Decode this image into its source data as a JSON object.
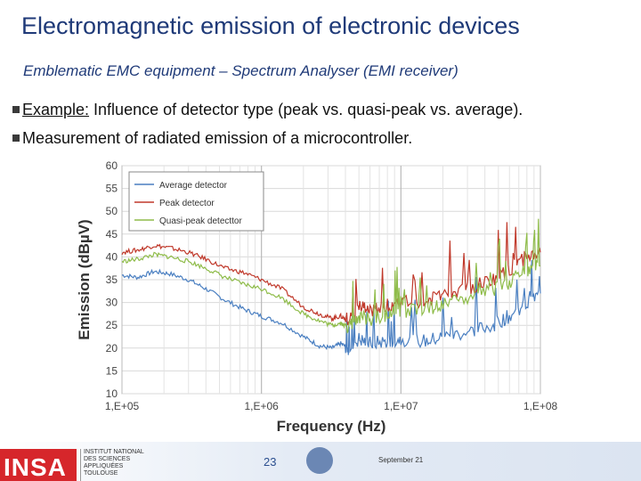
{
  "slide": {
    "title": "Electromagnetic emission of electronic devices",
    "subtitle": "Emblematic EMC equipment – Spectrum Analyser (EMI receiver)",
    "bullets": [
      {
        "prefix": "Example:",
        "text": " Influence of detector type (peak vs. quasi-peak vs. average)."
      },
      {
        "prefix": "",
        "text": "Measurement of radiated emission of a microcontroller."
      }
    ]
  },
  "footer": {
    "logo_text": "INSA",
    "institution_lines": [
      "INSTITUT NATIONAL",
      "DES SCIENCES",
      "APPLIQUÉES",
      "TOULOUSE"
    ],
    "page_number": "23",
    "date": "September 21"
  },
  "chart_data": {
    "type": "line",
    "xlabel": "Frequency (Hz)",
    "ylabel": "Emission (dBµV)",
    "xscale": "log",
    "xlim": [
      100000,
      100000000
    ],
    "ylim": [
      10,
      60
    ],
    "yticks": [
      10,
      15,
      20,
      25,
      30,
      35,
      40,
      45,
      50,
      55,
      60
    ],
    "yticklabels": [
      "10",
      "15",
      "20",
      "25",
      "30",
      "35",
      "40",
      "45",
      "50",
      "55",
      "60"
    ],
    "xticks": [
      100000,
      1000000,
      10000000,
      100000000
    ],
    "xticklabels": [
      "1,E+05",
      "1,E+06",
      "1,E+07",
      "1,E+08"
    ],
    "grid": true,
    "legend_position": "top-left",
    "series": [
      {
        "name": "Average detector",
        "color": "#4a7fc1",
        "points": [
          [
            100000,
            36
          ],
          [
            130000,
            35.5
          ],
          [
            170000,
            36.8
          ],
          [
            220000,
            36.3
          ],
          [
            300000,
            35
          ],
          [
            400000,
            33
          ],
          [
            550000,
            30.5
          ],
          [
            750000,
            28.5
          ],
          [
            1000000,
            27
          ],
          [
            1400000,
            25.5
          ],
          [
            2000000,
            22.5
          ],
          [
            2600000,
            20.5
          ],
          [
            3200000,
            20
          ],
          [
            3700000,
            21
          ],
          [
            4200000,
            20
          ],
          [
            5000000,
            22
          ],
          [
            6000000,
            21
          ],
          [
            8000000,
            21.5
          ],
          [
            10000000,
            22
          ],
          [
            15000000,
            21.5
          ],
          [
            20000000,
            22.5
          ],
          [
            30000000,
            23.5
          ],
          [
            45000000,
            25
          ],
          [
            60000000,
            27
          ],
          [
            80000000,
            29.5
          ],
          [
            100000000,
            32
          ]
        ]
      },
      {
        "name": "Peak detector",
        "color": "#c0392b",
        "points": [
          [
            100000,
            41
          ],
          [
            130000,
            41.5
          ],
          [
            170000,
            42.5
          ],
          [
            220000,
            42
          ],
          [
            300000,
            41
          ],
          [
            400000,
            39.5
          ],
          [
            550000,
            37.5
          ],
          [
            750000,
            36.5
          ],
          [
            1000000,
            35
          ],
          [
            1400000,
            33
          ],
          [
            2000000,
            29
          ],
          [
            2600000,
            27.5
          ],
          [
            3200000,
            26.5
          ],
          [
            3700000,
            27
          ],
          [
            4200000,
            26
          ],
          [
            5000000,
            29
          ],
          [
            6000000,
            28
          ],
          [
            8000000,
            29.5
          ],
          [
            10000000,
            30
          ],
          [
            15000000,
            30.5
          ],
          [
            20000000,
            31.5
          ],
          [
            30000000,
            33
          ],
          [
            45000000,
            35
          ],
          [
            60000000,
            37
          ],
          [
            80000000,
            40
          ],
          [
            100000000,
            41
          ]
        ]
      },
      {
        "name": "Quasi-peak detecttor",
        "color": "#8fbc4a",
        "points": [
          [
            100000,
            39
          ],
          [
            130000,
            39.5
          ],
          [
            170000,
            40.5
          ],
          [
            220000,
            40
          ],
          [
            300000,
            39
          ],
          [
            400000,
            37.5
          ],
          [
            550000,
            35.5
          ],
          [
            750000,
            34
          ],
          [
            1000000,
            33
          ],
          [
            1400000,
            31
          ],
          [
            2000000,
            27.5
          ],
          [
            2600000,
            26
          ],
          [
            3200000,
            25
          ],
          [
            3700000,
            25.5
          ],
          [
            4200000,
            24.5
          ],
          [
            5000000,
            27
          ],
          [
            6000000,
            26
          ],
          [
            8000000,
            27.5
          ],
          [
            10000000,
            28
          ],
          [
            15000000,
            28.5
          ],
          [
            20000000,
            29.5
          ],
          [
            30000000,
            31
          ],
          [
            45000000,
            32.5
          ],
          [
            60000000,
            34.5
          ],
          [
            80000000,
            37
          ],
          [
            100000000,
            38
          ]
        ]
      }
    ]
  }
}
